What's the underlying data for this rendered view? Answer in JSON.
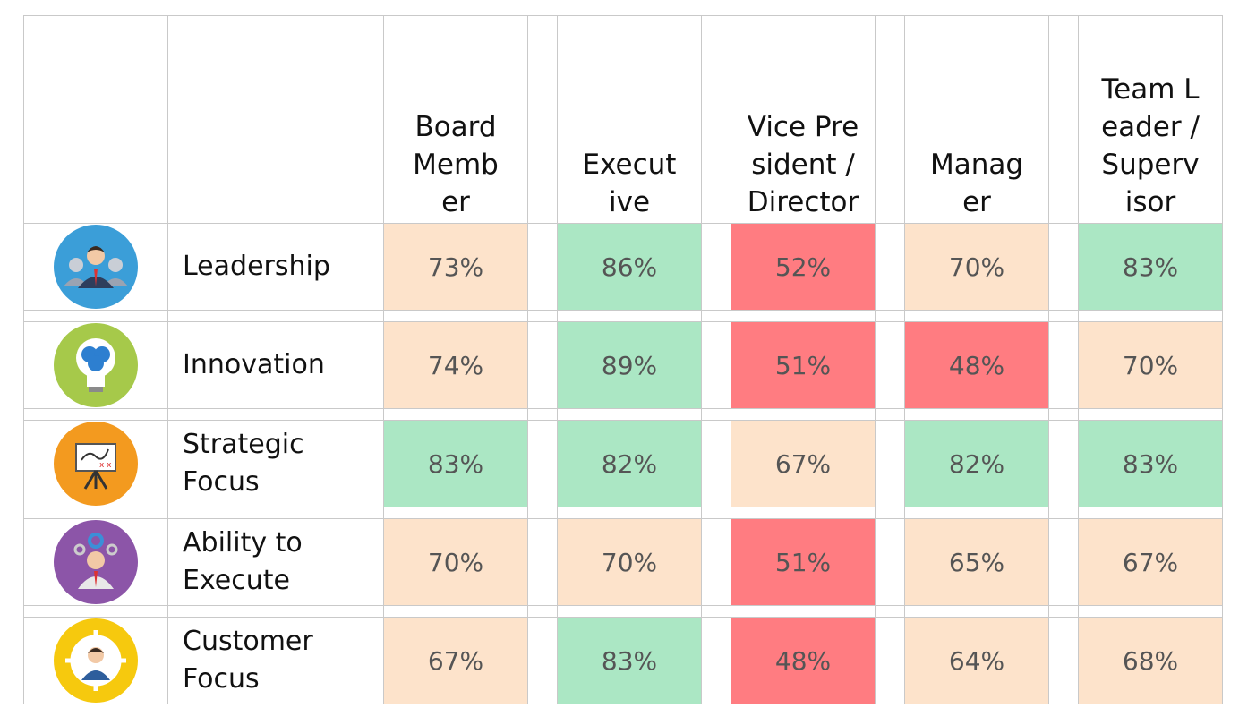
{
  "header": {
    "columns": [
      "Board Member",
      "Executive",
      "Vice President / Director",
      "Manager",
      "Team Leader / Supervisor"
    ]
  },
  "rows": [
    {
      "label": "Leadership",
      "icon": "leadership-team-icon",
      "values": [
        "73%",
        "86%",
        "52%",
        "70%",
        "83%"
      ]
    },
    {
      "label": "Innovation",
      "icon": "lightbulb-brain-icon",
      "values": [
        "74%",
        "89%",
        "51%",
        "48%",
        "70%"
      ]
    },
    {
      "label": "Strategic Focus",
      "icon": "strategy-board-icon",
      "values": [
        "83%",
        "82%",
        "67%",
        "82%",
        "83%"
      ]
    },
    {
      "label": "Ability to Execute",
      "icon": "gears-person-icon",
      "values": [
        "70%",
        "70%",
        "51%",
        "65%",
        "67%"
      ]
    },
    {
      "label": "Customer Focus",
      "icon": "customer-target-icon",
      "values": [
        "67%",
        "83%",
        "48%",
        "64%",
        "68%"
      ]
    }
  ],
  "colors": {
    "high": "#abe7c4",
    "mid": "#fde3cb",
    "low": "#ff7c81"
  }
}
